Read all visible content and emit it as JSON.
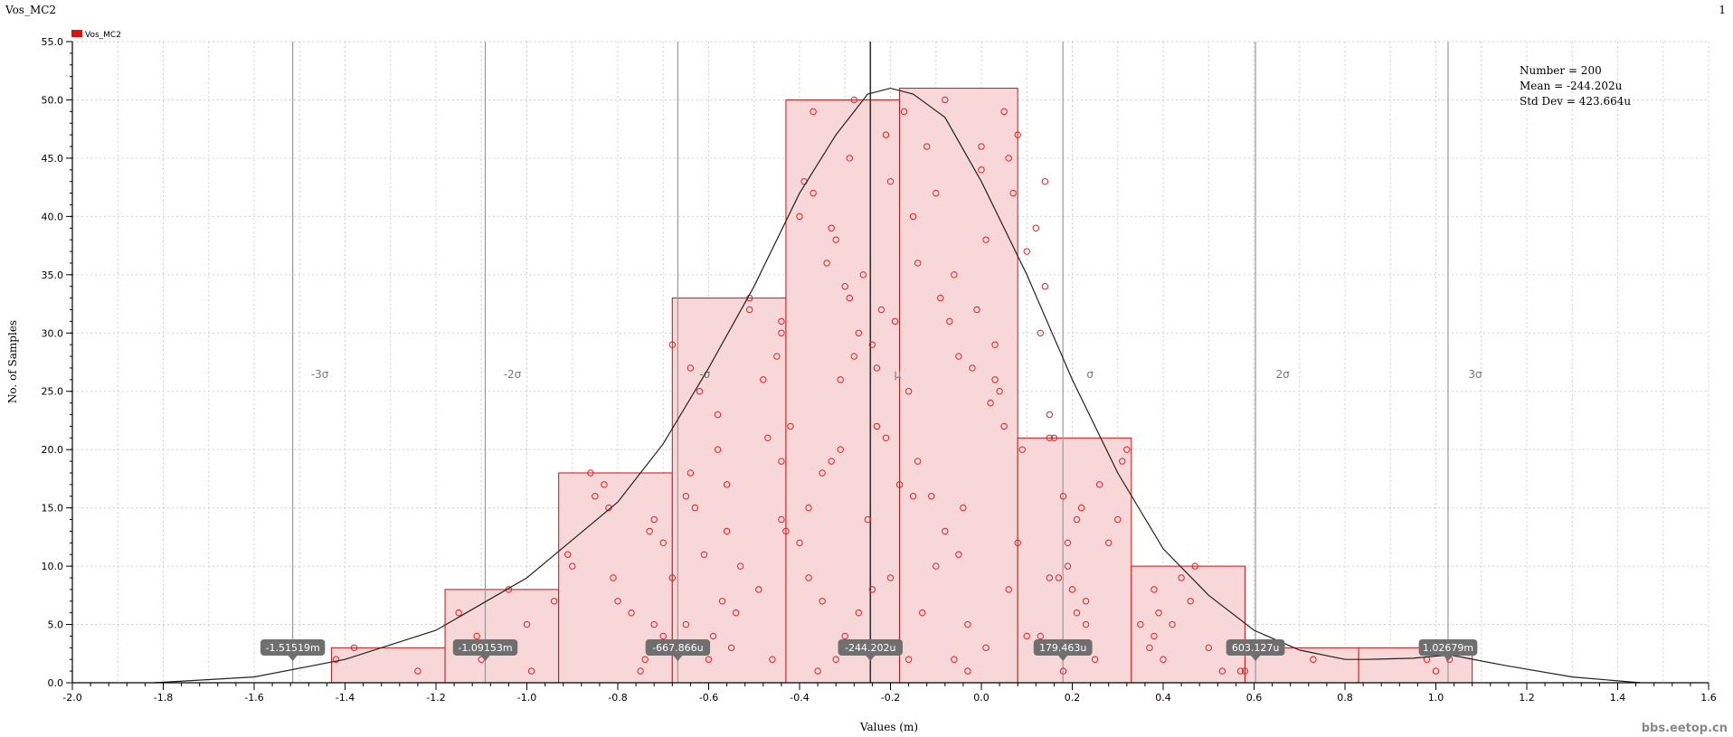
{
  "window": {
    "title": "Vos_MC2",
    "index": "1"
  },
  "watermark": "bbs.eetop.cn",
  "colors": {
    "bar_fill": "#f8d7d8",
    "bar_stroke": "#cc1111",
    "point": "#e02020",
    "curve": "#222222",
    "sigma_line": "#999999",
    "marker_bg": "#6f6f6f"
  },
  "stats": {
    "number": "Number = 200",
    "mean": "Mean = -244.202u",
    "std": "Std Dev = 423.664u"
  },
  "chart_data": {
    "type": "bar",
    "title": "",
    "legend": {
      "label": "Vos_MC2",
      "position": "top-left"
    },
    "xlabel": "Values (m)",
    "ylabel": "No. of Samples",
    "xlim": [
      -2.0,
      1.6
    ],
    "ylim": [
      0,
      55
    ],
    "x_ticks": [
      -2.0,
      -1.8,
      -1.6,
      -1.4,
      -1.2,
      -1.0,
      -0.8,
      -0.6,
      -0.4,
      -0.2,
      0.0,
      0.2,
      0.4,
      0.6,
      0.8,
      1.0,
      1.2,
      1.4,
      1.6
    ],
    "x_tick_labels": [
      "-2.0",
      "-1.8",
      "-1.6",
      "-1.4",
      "-1.2",
      "-1.0",
      "-0.8",
      "-0.6",
      "-0.4",
      "-0.2",
      "0.0",
      "0.2",
      "0.4",
      "0.6",
      "0.8",
      "1.0",
      "1.2",
      "1.4",
      "1.6"
    ],
    "y_ticks": [
      0,
      5,
      10,
      15,
      20,
      25,
      30,
      35,
      40,
      45,
      50,
      55
    ],
    "y_tick_labels": [
      "0.0",
      "5.0",
      "10.0",
      "15.0",
      "20.0",
      "25.0",
      "30.0",
      "35.0",
      "40.0",
      "45.0",
      "50.0",
      "55.0"
    ],
    "grid": true,
    "bins": [
      {
        "x0": -1.43,
        "x1": -1.18,
        "count": 3
      },
      {
        "x0": -1.18,
        "x1": -0.93,
        "count": 8
      },
      {
        "x0": -0.93,
        "x1": -0.68,
        "count": 18
      },
      {
        "x0": -0.68,
        "x1": -0.43,
        "count": 33
      },
      {
        "x0": -0.43,
        "x1": -0.18,
        "count": 50
      },
      {
        "x0": -0.18,
        "x1": 0.08,
        "count": 51
      },
      {
        "x0": 0.08,
        "x1": 0.33,
        "count": 21
      },
      {
        "x0": 0.33,
        "x1": 0.58,
        "count": 10
      },
      {
        "x0": 0.58,
        "x1": 0.83,
        "count": 3
      },
      {
        "x0": 0.83,
        "x1": 1.08,
        "count": 3
      }
    ],
    "density_curve": [
      [
        -1.82,
        0.0
      ],
      [
        -1.6,
        0.5
      ],
      [
        -1.4,
        2.0
      ],
      [
        -1.2,
        4.5
      ],
      [
        -1.0,
        9.0
      ],
      [
        -0.8,
        15.5
      ],
      [
        -0.7,
        20.5
      ],
      [
        -0.6,
        27.0
      ],
      [
        -0.5,
        34.0
      ],
      [
        -0.4,
        42.0
      ],
      [
        -0.32,
        47.0
      ],
      [
        -0.25,
        50.5
      ],
      [
        -0.2,
        51.0
      ],
      [
        -0.15,
        50.5
      ],
      [
        -0.08,
        48.5
      ],
      [
        0.0,
        43.0
      ],
      [
        0.1,
        35.0
      ],
      [
        0.2,
        26.0
      ],
      [
        0.3,
        18.0
      ],
      [
        0.4,
        11.5
      ],
      [
        0.5,
        7.5
      ],
      [
        0.6,
        4.5
      ],
      [
        0.7,
        2.8
      ],
      [
        0.8,
        2.0
      ],
      [
        0.85,
        2.0
      ],
      [
        0.95,
        2.1
      ],
      [
        1.03,
        2.4
      ],
      [
        1.15,
        1.5
      ],
      [
        1.3,
        0.5
      ],
      [
        1.45,
        0.0
      ]
    ],
    "sigma_lines": [
      {
        "x": -1.51519,
        "label": "-3σ",
        "marker": "-1.51519m"
      },
      {
        "x": -1.09153,
        "label": "-2σ",
        "marker": "-1.09153m"
      },
      {
        "x": -0.667866,
        "label": "-σ",
        "marker": "-667.866u"
      },
      {
        "x": -0.244202,
        "label": "μ",
        "marker": "-244.202u"
      },
      {
        "x": 0.179463,
        "label": "σ",
        "marker": "179.463u"
      },
      {
        "x": 0.603127,
        "label": "2σ",
        "marker": "603.127u"
      },
      {
        "x": 1.02679,
        "label": "3σ",
        "marker": "1.02679m"
      }
    ],
    "samples": [
      [
        -1.42,
        2
      ],
      [
        -1.38,
        3
      ],
      [
        -1.24,
        1
      ],
      [
        -1.15,
        6
      ],
      [
        -1.11,
        4
      ],
      [
        -1.1,
        2
      ],
      [
        -1.09,
        3
      ],
      [
        -1.04,
        8
      ],
      [
        -1.0,
        5
      ],
      [
        -0.99,
        1
      ],
      [
        -0.94,
        7
      ],
      [
        -0.91,
        11
      ],
      [
        -0.9,
        10
      ],
      [
        -0.86,
        18
      ],
      [
        -0.85,
        16
      ],
      [
        -0.83,
        17
      ],
      [
        -0.82,
        15
      ],
      [
        -0.81,
        9
      ],
      [
        -0.8,
        7
      ],
      [
        -0.77,
        6
      ],
      [
        -0.75,
        1
      ],
      [
        -0.74,
        2
      ],
      [
        -0.73,
        13
      ],
      [
        -0.72,
        14
      ],
      [
        -0.72,
        5
      ],
      [
        -0.7,
        12
      ],
      [
        -0.7,
        4
      ],
      [
        -0.69,
        3
      ],
      [
        -0.68,
        9
      ],
      [
        -0.68,
        29
      ],
      [
        -0.66,
        3
      ],
      [
        -0.65,
        5
      ],
      [
        -0.65,
        16
      ],
      [
        -0.64,
        18
      ],
      [
        -0.64,
        27
      ],
      [
        -0.63,
        15
      ],
      [
        -0.62,
        25
      ],
      [
        -0.61,
        11
      ],
      [
        -0.6,
        2
      ],
      [
        -0.59,
        4
      ],
      [
        -0.58,
        20
      ],
      [
        -0.58,
        23
      ],
      [
        -0.57,
        7
      ],
      [
        -0.56,
        17
      ],
      [
        -0.56,
        13
      ],
      [
        -0.55,
        3
      ],
      [
        -0.54,
        6
      ],
      [
        -0.53,
        10
      ],
      [
        -0.51,
        33
      ],
      [
        -0.51,
        32
      ],
      [
        -0.49,
        8
      ],
      [
        -0.48,
        26
      ],
      [
        -0.47,
        21
      ],
      [
        -0.46,
        2
      ],
      [
        -0.45,
        28
      ],
      [
        -0.44,
        31
      ],
      [
        -0.44,
        30
      ],
      [
        -0.44,
        19
      ],
      [
        -0.44,
        14
      ],
      [
        -0.43,
        13
      ],
      [
        -0.42,
        22
      ],
      [
        -0.4,
        12
      ],
      [
        -0.4,
        40
      ],
      [
        -0.39,
        43
      ],
      [
        -0.38,
        15
      ],
      [
        -0.38,
        9
      ],
      [
        -0.37,
        42
      ],
      [
        -0.37,
        49
      ],
      [
        -0.36,
        1
      ],
      [
        -0.35,
        18
      ],
      [
        -0.35,
        7
      ],
      [
        -0.34,
        36
      ],
      [
        -0.33,
        19
      ],
      [
        -0.33,
        39
      ],
      [
        -0.32,
        38
      ],
      [
        -0.32,
        2
      ],
      [
        -0.31,
        26
      ],
      [
        -0.31,
        20
      ],
      [
        -0.3,
        4
      ],
      [
        -0.3,
        34
      ],
      [
        -0.29,
        33
      ],
      [
        -0.29,
        45
      ],
      [
        -0.28,
        50
      ],
      [
        -0.28,
        28
      ],
      [
        -0.27,
        6
      ],
      [
        -0.27,
        30
      ],
      [
        -0.26,
        35
      ],
      [
        -0.25,
        14
      ],
      [
        -0.25,
        3
      ],
      [
        -0.24,
        29
      ],
      [
        -0.24,
        8
      ],
      [
        -0.23,
        22
      ],
      [
        -0.23,
        27
      ],
      [
        -0.22,
        32
      ],
      [
        -0.21,
        47
      ],
      [
        -0.21,
        21
      ],
      [
        -0.2,
        43
      ],
      [
        -0.2,
        9
      ],
      [
        -0.19,
        31
      ],
      [
        -0.18,
        17
      ],
      [
        -0.17,
        49
      ],
      [
        -0.16,
        2
      ],
      [
        -0.16,
        25
      ],
      [
        -0.15,
        16
      ],
      [
        -0.15,
        40
      ],
      [
        -0.14,
        36
      ],
      [
        -0.14,
        19
      ],
      [
        -0.13,
        6
      ],
      [
        -0.12,
        46
      ],
      [
        -0.11,
        16
      ],
      [
        -0.1,
        42
      ],
      [
        -0.1,
        10
      ],
      [
        -0.09,
        33
      ],
      [
        -0.08,
        50
      ],
      [
        -0.08,
        13
      ],
      [
        -0.07,
        31
      ],
      [
        -0.06,
        2
      ],
      [
        -0.06,
        35
      ],
      [
        -0.05,
        11
      ],
      [
        -0.05,
        28
      ],
      [
        -0.04,
        15
      ],
      [
        -0.03,
        5
      ],
      [
        -0.03,
        1
      ],
      [
        -0.02,
        27
      ],
      [
        -0.01,
        32
      ],
      [
        0.0,
        44
      ],
      [
        0.0,
        46
      ],
      [
        0.01,
        38
      ],
      [
        0.01,
        3
      ],
      [
        0.02,
        24
      ],
      [
        0.03,
        26
      ],
      [
        0.03,
        29
      ],
      [
        0.04,
        25
      ],
      [
        0.05,
        49
      ],
      [
        0.05,
        22
      ],
      [
        0.06,
        45
      ],
      [
        0.06,
        8
      ],
      [
        0.07,
        42
      ],
      [
        0.08,
        12
      ],
      [
        0.08,
        47
      ],
      [
        0.09,
        20
      ],
      [
        0.1,
        37
      ],
      [
        0.1,
        4
      ],
      [
        0.12,
        39
      ],
      [
        0.13,
        30
      ],
      [
        0.13,
        4
      ],
      [
        0.14,
        34
      ],
      [
        0.14,
        43
      ],
      [
        0.15,
        9
      ],
      [
        0.15,
        21
      ],
      [
        0.15,
        23
      ],
      [
        0.16,
        21
      ],
      [
        0.17,
        9
      ],
      [
        0.18,
        16
      ],
      [
        0.18,
        1
      ],
      [
        0.19,
        10
      ],
      [
        0.19,
        12
      ],
      [
        0.2,
        8
      ],
      [
        0.21,
        6
      ],
      [
        0.21,
        14
      ],
      [
        0.22,
        15
      ],
      [
        0.23,
        5
      ],
      [
        0.23,
        7
      ],
      [
        0.25,
        2
      ],
      [
        0.26,
        17
      ],
      [
        0.28,
        12
      ],
      [
        0.3,
        14
      ],
      [
        0.31,
        19
      ],
      [
        0.32,
        20
      ],
      [
        0.35,
        5
      ],
      [
        0.37,
        3
      ],
      [
        0.38,
        8
      ],
      [
        0.38,
        4
      ],
      [
        0.39,
        6
      ],
      [
        0.4,
        2
      ],
      [
        0.42,
        5
      ],
      [
        0.44,
        9
      ],
      [
        0.46,
        7
      ],
      [
        0.47,
        10
      ],
      [
        0.5,
        3
      ],
      [
        0.53,
        1
      ],
      [
        0.57,
        1
      ],
      [
        0.58,
        1
      ],
      [
        0.62,
        3
      ],
      [
        0.73,
        2
      ],
      [
        0.98,
        2
      ],
      [
        1.0,
        1
      ],
      [
        1.02,
        3
      ],
      [
        1.03,
        2
      ]
    ]
  }
}
